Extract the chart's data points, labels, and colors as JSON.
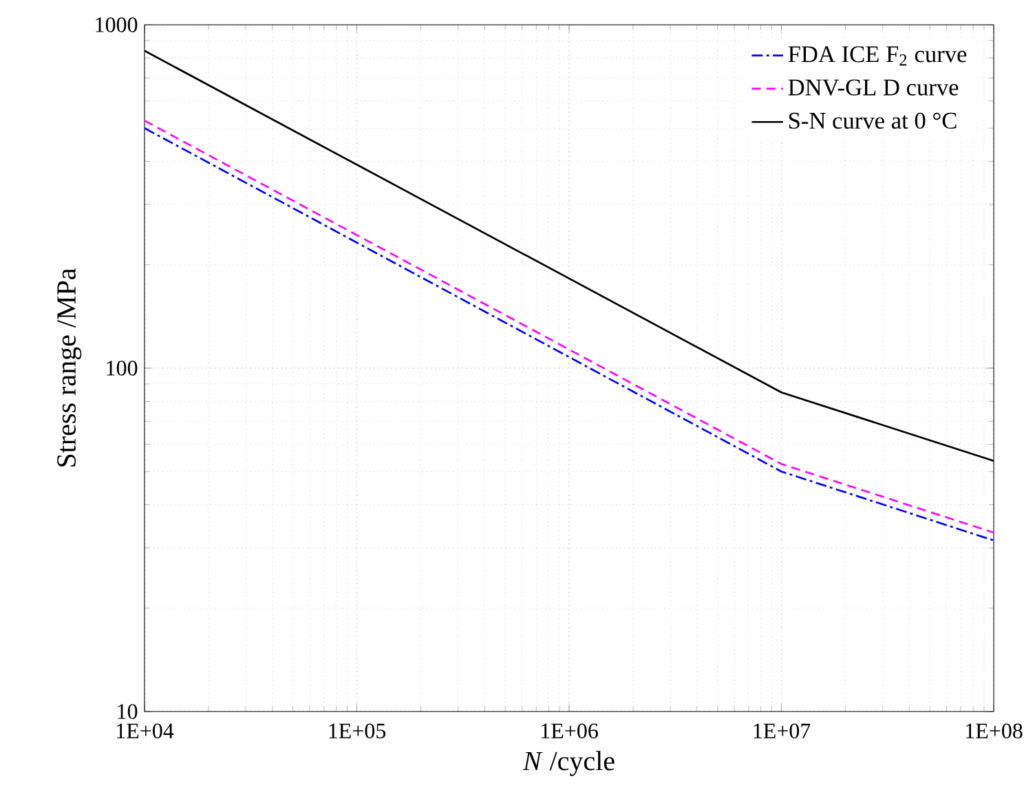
{
  "chart_data": {
    "type": "line",
    "xlabel": "*N* /cycle",
    "ylabel": "Stress range /MPa",
    "log": "xy",
    "grid": true,
    "legend": "top right",
    "xlim": [
      10000,
      100000000
    ],
    "ylim": [
      10,
      1000
    ],
    "xticks": [
      {
        "value": 10000,
        "label": "1E+04"
      },
      {
        "value": 100000,
        "label": "1E+05"
      },
      {
        "value": 1000000,
        "label": "1E+06"
      },
      {
        "value": 10000000,
        "label": "1E+07"
      },
      {
        "value": 100000000,
        "label": "1E+08"
      }
    ],
    "yticks": [
      10,
      100,
      1000
    ],
    "series": [
      {
        "name": "FDA ICE F$_{2}$ curve",
        "color": "#0000ff",
        "line_style": "dashdot",
        "x": [
          10000,
          10000000,
          100000000
        ],
        "values": [
          500,
          50,
          31.5
        ]
      },
      {
        "name": "DNV-GL D curve",
        "color": "#ff00ff",
        "line_style": "dashed",
        "x": [
          10000,
          10000000,
          100000000
        ],
        "values": [
          526,
          52.6,
          33.2
        ]
      },
      {
        "name": "S-N curve at 0 °C",
        "color": "#000000",
        "line_style": "solid",
        "x": [
          10000,
          10000000,
          100000000
        ],
        "values": [
          840,
          85,
          53.7
        ]
      }
    ]
  }
}
